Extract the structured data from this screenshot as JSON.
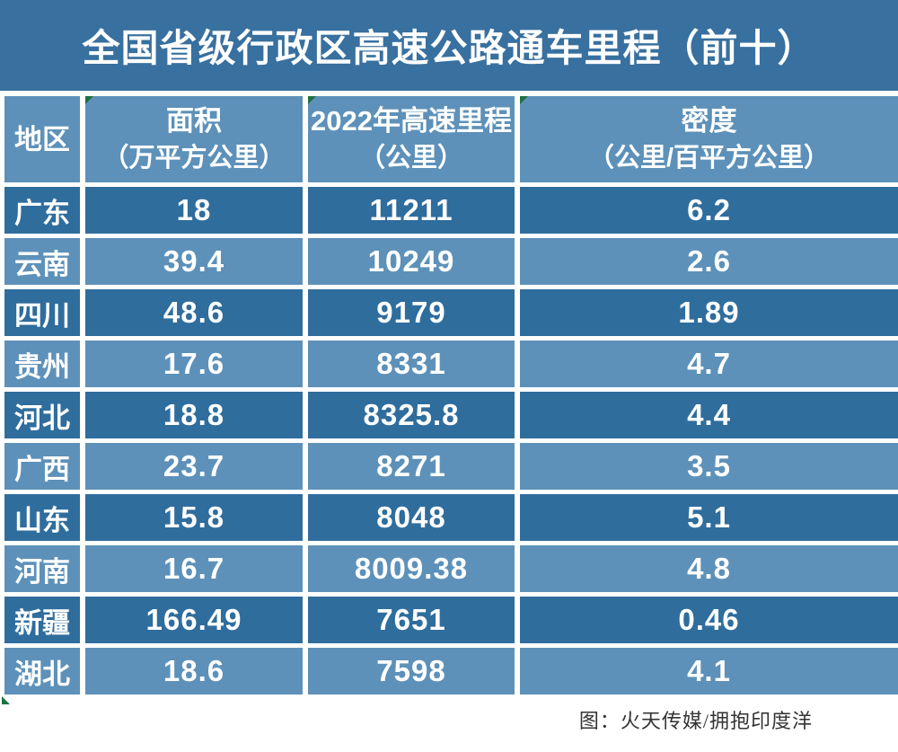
{
  "title": {
    "text": "全国省级行政区高速公路通车里程（前十）"
  },
  "chart_data": {
    "type": "table",
    "title": "全国省级行政区高速公路通车里程（前十）",
    "columns": [
      {
        "label": "地区",
        "sublabel": ""
      },
      {
        "label": "面积",
        "sublabel": "（万平方公里）"
      },
      {
        "label": "2022年高速里程",
        "sublabel": "（公里）"
      },
      {
        "label": "密度",
        "sublabel": "（公里/百平方公里）"
      }
    ],
    "rows": [
      [
        "广东",
        "18",
        "11211",
        "6.2"
      ],
      [
        "云南",
        "39.4",
        "10249",
        "2.6"
      ],
      [
        "四川",
        "48.6",
        "9179",
        "1.89"
      ],
      [
        "贵州",
        "17.6",
        "8331",
        "4.7"
      ],
      [
        "河北",
        "18.8",
        "8325.8",
        "4.4"
      ],
      [
        "广西",
        "23.7",
        "8271",
        "3.5"
      ],
      [
        "山东",
        "15.8",
        "8048",
        "5.1"
      ],
      [
        "河南",
        "16.7",
        "8009.38",
        "4.8"
      ],
      [
        "新疆",
        "166.49",
        "7651",
        "0.46"
      ],
      [
        "湖北",
        "18.6",
        "7598",
        "4.1"
      ]
    ]
  },
  "footer": {
    "credit": "图：火天传媒/拥抱印度洋"
  },
  "colors": {
    "title_bg": "#38709f",
    "header_bg": "#5d91b9",
    "row_dark": "#2f6d9d",
    "row_light": "#5d91b9",
    "cell_text": "#ffffff",
    "marker_green": "#1e7145",
    "footer_text": "#333333"
  }
}
